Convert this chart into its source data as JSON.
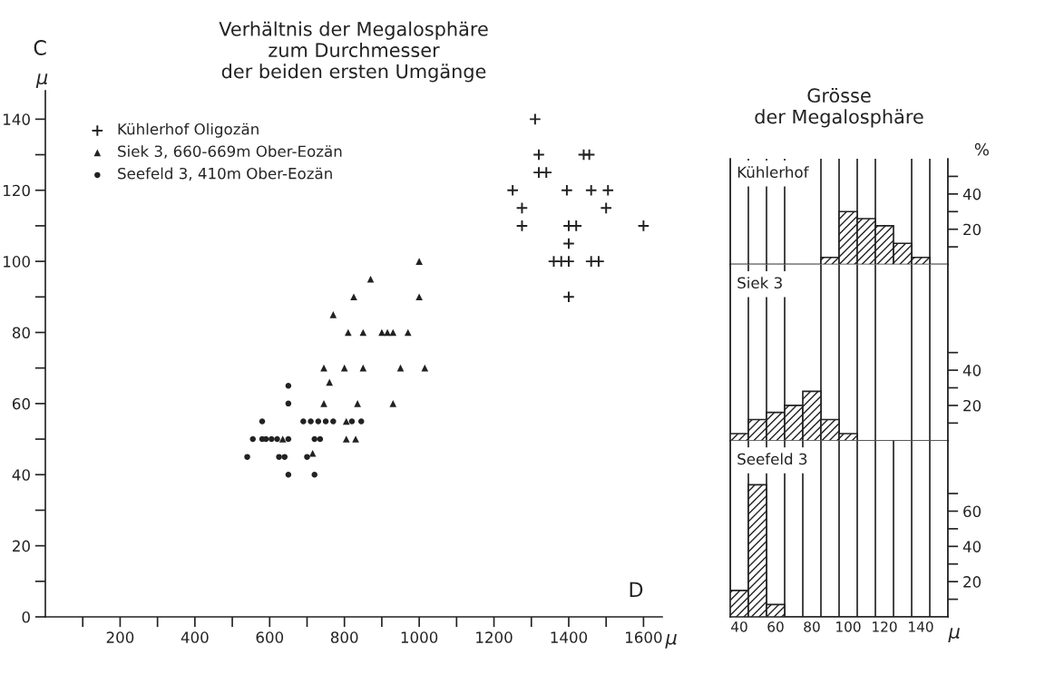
{
  "chart_data": [
    {
      "type": "scatter",
      "title": "Verhältnis der Megalosphäre\nzum Durchmesser\nder beiden ersten Umgänge",
      "xlabel": "μ",
      "ylabel": "μ",
      "xlim": [
        0,
        1650
      ],
      "ylim": [
        0,
        148
      ],
      "xticks": [
        {
          "value": 100,
          "label": null
        },
        200,
        {
          "value": 300,
          "label": null
        },
        400,
        {
          "value": 500,
          "label": null
        },
        600,
        {
          "value": 700,
          "label": null
        },
        800,
        {
          "value": 900,
          "label": null
        },
        1000,
        {
          "value": 1100,
          "label": null
        },
        1200,
        {
          "value": 1300,
          "label": null
        },
        1400,
        {
          "value": 1500,
          "label": null
        },
        1600
      ],
      "yticks": [
        0,
        {
          "value": 10,
          "label": null
        },
        20,
        {
          "value": 30,
          "label": null
        },
        40,
        {
          "value": 50,
          "label": null
        },
        60,
        {
          "value": 70,
          "label": null
        },
        80,
        {
          "value": 90,
          "label": null
        },
        100,
        {
          "value": 110,
          "label": null
        },
        120,
        {
          "value": 130,
          "label": null
        },
        140
      ],
      "legend": "top left",
      "grid": false,
      "annotations": [
        "C",
        "D"
      ],
      "series": [
        {
          "name": "Kühlerhof Oligozän",
          "color": "#222222",
          "marker": "cross",
          "x": [
            1310,
            1320,
            1440,
            1455,
            1320,
            1340,
            1250,
            1395,
            1460,
            1505,
            1275,
            1500,
            1275,
            1400,
            1420,
            1600,
            1400,
            1360,
            1380,
            1400,
            1460,
            1480,
            1400
          ],
          "values": [
            140,
            130,
            130,
            130,
            125,
            125,
            120,
            120,
            120,
            120,
            115,
            115,
            110,
            110,
            110,
            110,
            105,
            100,
            100,
            100,
            100,
            100,
            90
          ]
        },
        {
          "name": "Siek 3, 660-669m Ober-Eozän",
          "color": "#222222",
          "marker": "triangle",
          "x": [
            1000,
            870,
            1000,
            825,
            770,
            810,
            850,
            900,
            915,
            930,
            970,
            745,
            800,
            850,
            950,
            1015,
            760,
            745,
            835,
            930,
            805,
            805,
            830,
            635,
            715
          ],
          "values": [
            100,
            95,
            90,
            90,
            85,
            80,
            80,
            80,
            80,
            80,
            80,
            70,
            70,
            70,
            70,
            70,
            66,
            60,
            60,
            60,
            55,
            50,
            50,
            50,
            46
          ]
        },
        {
          "name": "Seefeld 3, 410m Ober-Eozän",
          "color": "#222222",
          "marker": "circle",
          "x": [
            650,
            650,
            580,
            690,
            710,
            730,
            750,
            770,
            820,
            845,
            555,
            580,
            590,
            605,
            620,
            650,
            720,
            735,
            540,
            625,
            640,
            700,
            650,
            720
          ],
          "values": [
            65,
            60,
            55,
            55,
            55,
            55,
            55,
            55,
            55,
            55,
            50,
            50,
            50,
            50,
            50,
            50,
            50,
            50,
            45,
            45,
            45,
            45,
            40,
            40
          ]
        }
      ]
    },
    {
      "type": "histogram",
      "title": "Grösse\nder Megalosphäre",
      "ylabel": "%",
      "annotations": [
        "Kühlerhof"
      ],
      "color": "#222222",
      "grid": "x",
      "tick_labels": "y",
      "bins": [
        35,
        45,
        55,
        65,
        75,
        85,
        95,
        105,
        115,
        125,
        135,
        145,
        155
      ],
      "values": [
        0,
        0,
        0,
        0,
        0,
        4,
        30,
        26,
        22,
        12,
        4,
        0
      ],
      "xlim": [
        35,
        155
      ],
      "ylim": [
        0,
        60
      ],
      "yticks": [
        {
          "value": 10,
          "label": null
        },
        20,
        {
          "value": 30,
          "label": null
        },
        40,
        {
          "value": 50,
          "label": null
        }
      ]
    },
    {
      "type": "histogram",
      "annotations": [
        "Siek 3"
      ],
      "color": "#222222",
      "grid": "x",
      "tick_labels": "y",
      "bins": [
        35,
        45,
        55,
        65,
        75,
        85,
        95,
        105,
        115,
        125,
        135,
        145,
        155
      ],
      "values": [
        4,
        12,
        16,
        20,
        28,
        12,
        4,
        0,
        0,
        0,
        0,
        0
      ],
      "xlim": [
        35,
        155
      ],
      "ylim": [
        0,
        100
      ],
      "yticks": [
        {
          "value": 10,
          "label": null
        },
        20,
        {
          "value": 30,
          "label": null
        },
        40,
        {
          "value": 50,
          "label": null
        }
      ]
    },
    {
      "type": "histogram",
      "annotations": [
        "Seefeld 3"
      ],
      "color": "#222222",
      "grid": "x",
      "xlabel": "μ",
      "bins": [
        35,
        45,
        55,
        65,
        75,
        85,
        95,
        105,
        115,
        125,
        135,
        145,
        155
      ],
      "values": [
        15,
        75,
        7,
        0,
        0,
        0,
        0,
        0,
        0,
        0,
        0,
        0
      ],
      "xlim": [
        35,
        155
      ],
      "ylim": [
        0,
        100
      ],
      "xticks": [
        40,
        60,
        80,
        100,
        120,
        140
      ],
      "yticks": [
        {
          "value": 10,
          "label": null
        },
        20,
        {
          "value": 30,
          "label": null
        },
        40,
        {
          "value": 50,
          "label": null
        },
        60,
        {
          "value": 70,
          "label": null
        }
      ]
    }
  ]
}
